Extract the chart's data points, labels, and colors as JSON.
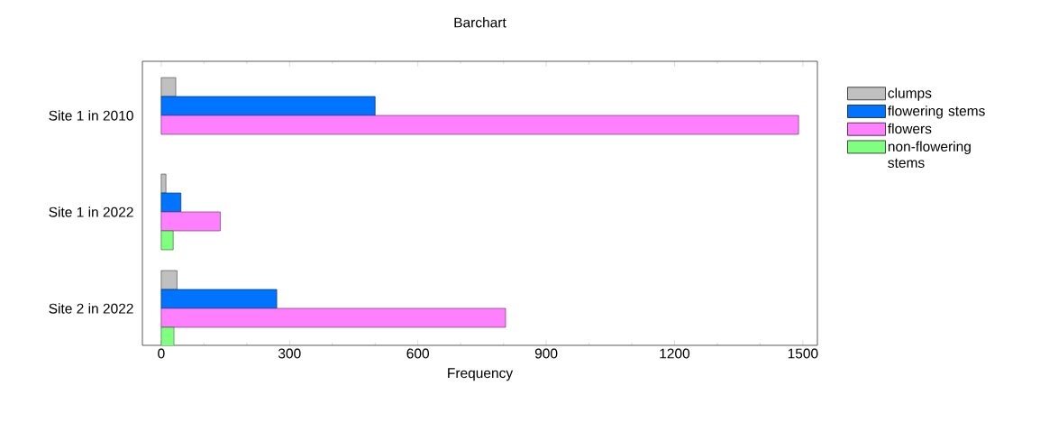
{
  "chart_data": {
    "type": "bar",
    "orientation": "horizontal",
    "title": "Barchart",
    "xlabel": "Frequency",
    "categories": [
      "Site 1 in 2010",
      "Site 1 in 2022",
      "Site 2 in 2022"
    ],
    "series": [
      {
        "name": "clumps",
        "color": "#c0c0c0",
        "values": [
          34,
          11,
          37
        ]
      },
      {
        "name": "flowering stems",
        "color": "#0073ff",
        "values": [
          500,
          46,
          270
        ]
      },
      {
        "name": "flowers",
        "color": "#ff80ff",
        "values": [
          1490,
          138,
          805
        ]
      },
      {
        "name": "non-flowering stems",
        "color": "#80ff80",
        "values": [
          0,
          28,
          30
        ]
      }
    ],
    "xlim": [
      -44,
      1534
    ],
    "xticks": [
      0,
      300,
      600,
      900,
      1200,
      1500
    ],
    "grid": false,
    "legend": "right"
  }
}
